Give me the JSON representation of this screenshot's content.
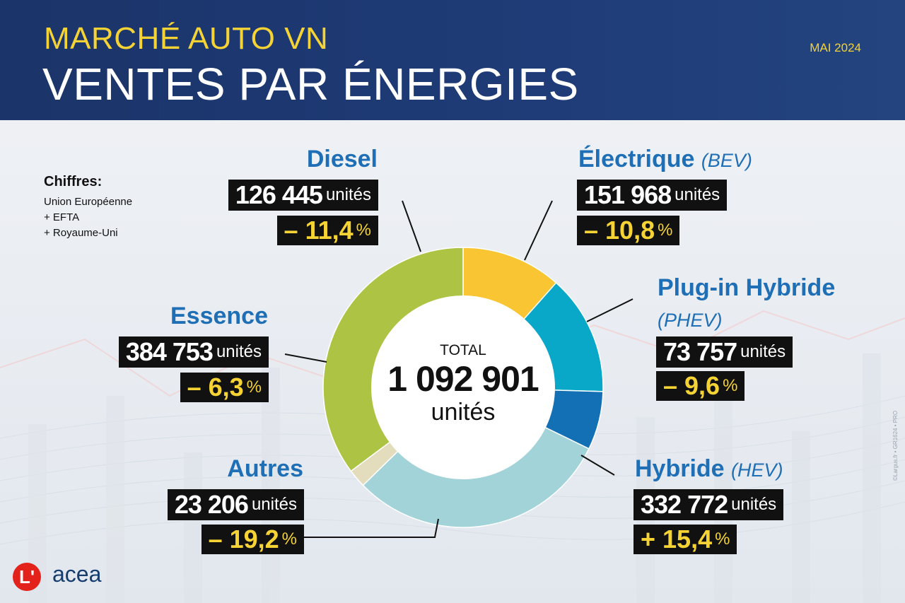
{
  "header": {
    "subtitle": "MARCHÉ AUTO VN",
    "title": "VENTES PAR ÉNERGIES",
    "date": "MAI 2024"
  },
  "note": {
    "title": "Chiffres:",
    "lines": [
      "Union Européenne",
      "+ EFTA",
      "+ Royaume-Uni"
    ]
  },
  "unit_label": "unités",
  "percent_sign": "%",
  "center": {
    "label": "TOTAL",
    "value": "1 092 901",
    "unit": "unités"
  },
  "segments": {
    "diesel": {
      "name": "Diesel",
      "sub": "",
      "units": "126 445",
      "change": "– 11,4"
    },
    "electrique": {
      "name": "Électrique",
      "sub": "(BEV)",
      "units": "151 968",
      "change": "– 10,8"
    },
    "phev": {
      "name": "Plug-in Hybride",
      "sub": "(PHEV)",
      "units": "73 757",
      "change": "– 9,6"
    },
    "hybride": {
      "name": "Hybride",
      "sub": "(HEV)",
      "units": "332 772",
      "change": "+ 15,4"
    },
    "autres": {
      "name": "Autres",
      "sub": "",
      "units": "23 206",
      "change": "– 19,2"
    },
    "essence": {
      "name": "Essence",
      "sub": "",
      "units": "384 753",
      "change": "– 6,3"
    }
  },
  "chart_data": {
    "type": "pie",
    "donut": true,
    "total": 1092901,
    "labels": [
      "Diesel",
      "Électrique (BEV)",
      "Plug-in Hybride (PHEV)",
      "Hybride (HEV)",
      "Autres",
      "Essence"
    ],
    "values": [
      126445,
      151968,
      73757,
      332772,
      23206,
      384753
    ],
    "change_pct": [
      -11.4,
      -10.8,
      -9.6,
      15.4,
      -19.2,
      -6.3
    ],
    "colors": [
      "#f9c532",
      "#0aa8c8",
      "#1470b4",
      "#a2d3d8",
      "#e3dcbd",
      "#acc343"
    ],
    "start_angle_deg": 0,
    "direction": "clockwise"
  },
  "brand": {
    "logo_letter": "L'",
    "partner": "acea",
    "credit": "©Largus.fr • GR1624 • PRO"
  }
}
